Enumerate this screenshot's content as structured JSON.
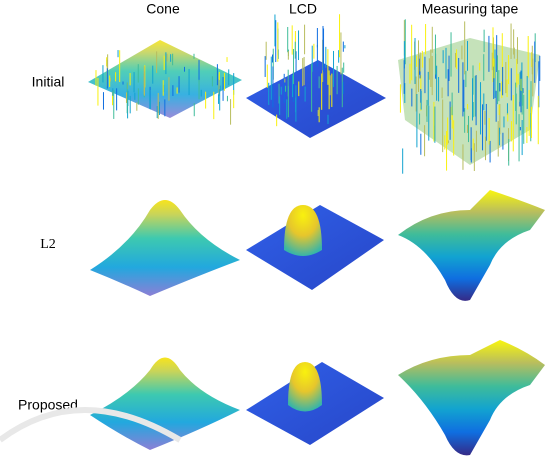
{
  "columns": [
    "Cone",
    "LCD",
    "Measuring tape"
  ],
  "rows": [
    "Initial",
    "L2",
    "Proposed"
  ]
}
